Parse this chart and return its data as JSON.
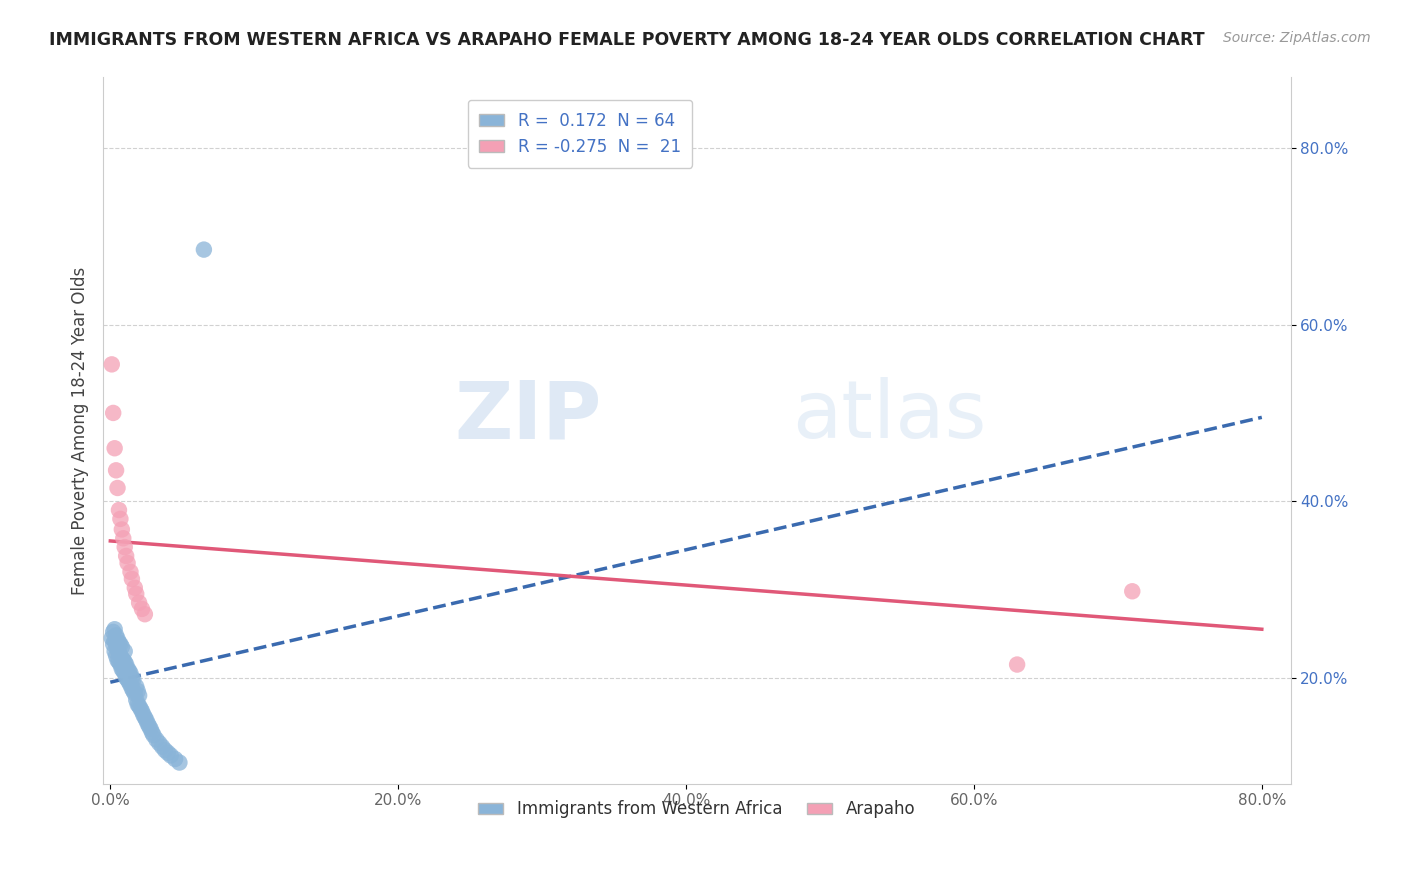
{
  "title": "IMMIGRANTS FROM WESTERN AFRICA VS ARAPAHO FEMALE POVERTY AMONG 18-24 YEAR OLDS CORRELATION CHART",
  "source": "Source: ZipAtlas.com",
  "ylabel": "Female Poverty Among 18-24 Year Olds",
  "legend_label1": "Immigrants from Western Africa",
  "legend_label2": "Arapaho",
  "R1": 0.172,
  "N1": 64,
  "R2": -0.275,
  "N2": 21,
  "xlim": [
    -0.005,
    0.82
  ],
  "ylim": [
    0.08,
    0.88
  ],
  "xticks": [
    0.0,
    0.2,
    0.4,
    0.6,
    0.8
  ],
  "xticklabels": [
    "0.0%",
    "20.0%",
    "40.0%",
    "60.0%",
    "80.0%"
  ],
  "yticks": [
    0.2,
    0.4,
    0.6,
    0.8
  ],
  "yticklabels": [
    "20.0%",
    "40.0%",
    "60.0%",
    "80.0%"
  ],
  "blue_color": "#8ab4d8",
  "pink_color": "#f4a0b5",
  "blue_line_color": "#3a6aaf",
  "pink_line_color": "#e05878",
  "text_color": "#4472c4",
  "watermark_zip": "ZIP",
  "watermark_atlas": "atlas",
  "blue_trend_x0": 0.0,
  "blue_trend_y0": 0.195,
  "blue_trend_x1": 0.8,
  "blue_trend_y1": 0.495,
  "pink_trend_x0": 0.0,
  "pink_trend_y0": 0.355,
  "pink_trend_x1": 0.8,
  "pink_trend_y1": 0.255,
  "blue_dots_x": [
    0.001,
    0.002,
    0.002,
    0.003,
    0.003,
    0.003,
    0.004,
    0.004,
    0.004,
    0.005,
    0.005,
    0.005,
    0.006,
    0.006,
    0.006,
    0.007,
    0.007,
    0.007,
    0.008,
    0.008,
    0.008,
    0.009,
    0.009,
    0.01,
    0.01,
    0.01,
    0.011,
    0.011,
    0.012,
    0.012,
    0.013,
    0.013,
    0.014,
    0.014,
    0.015,
    0.015,
    0.016,
    0.016,
    0.017,
    0.018,
    0.018,
    0.019,
    0.019,
    0.02,
    0.02,
    0.021,
    0.022,
    0.023,
    0.024,
    0.025,
    0.026,
    0.027,
    0.028,
    0.029,
    0.03,
    0.032,
    0.034,
    0.036,
    0.038,
    0.04,
    0.042,
    0.045,
    0.048,
    0.065
  ],
  "blue_dots_y": [
    0.245,
    0.238,
    0.252,
    0.23,
    0.242,
    0.255,
    0.225,
    0.238,
    0.248,
    0.22,
    0.232,
    0.244,
    0.218,
    0.228,
    0.24,
    0.215,
    0.225,
    0.238,
    0.21,
    0.222,
    0.235,
    0.208,
    0.22,
    0.205,
    0.218,
    0.23,
    0.2,
    0.215,
    0.198,
    0.21,
    0.195,
    0.208,
    0.192,
    0.205,
    0.188,
    0.2,
    0.185,
    0.198,
    0.182,
    0.175,
    0.19,
    0.17,
    0.185,
    0.168,
    0.18,
    0.165,
    0.162,
    0.158,
    0.155,
    0.152,
    0.148,
    0.145,
    0.142,
    0.138,
    0.135,
    0.13,
    0.126,
    0.122,
    0.118,
    0.115,
    0.112,
    0.108,
    0.104,
    0.685
  ],
  "pink_dots_x": [
    0.001,
    0.002,
    0.003,
    0.004,
    0.005,
    0.006,
    0.007,
    0.008,
    0.009,
    0.01,
    0.011,
    0.012,
    0.014,
    0.015,
    0.017,
    0.018,
    0.02,
    0.022,
    0.024,
    0.63,
    0.71
  ],
  "pink_dots_y": [
    0.555,
    0.5,
    0.46,
    0.435,
    0.415,
    0.39,
    0.38,
    0.368,
    0.358,
    0.348,
    0.338,
    0.33,
    0.32,
    0.312,
    0.302,
    0.295,
    0.285,
    0.278,
    0.272,
    0.215,
    0.298
  ]
}
